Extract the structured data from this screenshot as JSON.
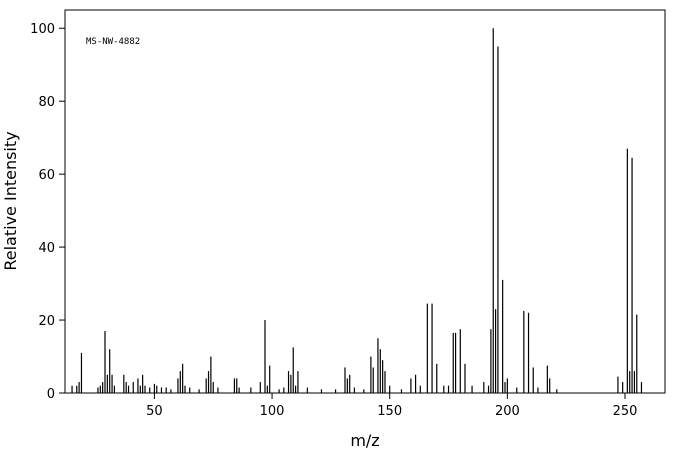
{
  "chart_data": {
    "type": "bar",
    "annotation": "MS-NW-4882",
    "xlabel": "m/z",
    "ylabel": "Relative Intensity",
    "xlim": [
      12,
      267
    ],
    "ylim": [
      0,
      105
    ],
    "xticks": [
      50,
      100,
      150,
      200,
      250
    ],
    "yticks": [
      0,
      20,
      40,
      60,
      80,
      100
    ],
    "color": "#000000",
    "x": [
      15,
      17,
      18,
      19,
      26,
      27,
      28,
      29,
      30,
      31,
      32,
      33,
      37,
      38,
      39,
      41,
      43,
      44,
      45,
      46,
      48,
      50,
      51,
      53,
      55,
      57,
      60,
      61,
      62,
      63,
      65,
      69,
      72,
      73,
      74,
      75,
      77,
      84,
      85,
      86,
      91,
      95,
      97,
      98,
      99,
      103,
      105,
      107,
      108,
      109,
      110,
      111,
      115,
      121,
      127,
      131,
      132,
      133,
      135,
      139,
      142,
      143,
      145,
      146,
      147,
      148,
      150,
      155,
      159,
      161,
      163,
      166,
      168,
      170,
      173,
      175,
      177,
      178,
      180,
      182,
      185,
      190,
      192,
      193,
      194,
      195,
      196,
      198,
      199,
      200,
      204,
      207,
      209,
      211,
      213,
      217,
      218,
      221,
      247,
      249,
      251,
      252,
      253,
      254,
      255,
      257
    ],
    "values": [
      2,
      2,
      3,
      11,
      1.5,
      2,
      3,
      17,
      5,
      12,
      5,
      2,
      5,
      3,
      2,
      3,
      4,
      2,
      5,
      2,
      1.5,
      2.5,
      2,
      1.5,
      1.5,
      1,
      4,
      6,
      8,
      2,
      1.5,
      1,
      4,
      6,
      10,
      3,
      1.5,
      4,
      4,
      1.5,
      1.5,
      3,
      20,
      2,
      7.5,
      1,
      1.5,
      6,
      5,
      12.5,
      2,
      6,
      1.5,
      1,
      1,
      7,
      4,
      5,
      1.5,
      1,
      10,
      7,
      15,
      12,
      9,
      6,
      2,
      1,
      4,
      5,
      2,
      24.5,
      24.5,
      8,
      2,
      2,
      16.5,
      16.5,
      17.5,
      8,
      2,
      3,
      2,
      17.5,
      100,
      23,
      95,
      31,
      3,
      4,
      1.5,
      22.5,
      22,
      7,
      1.5,
      7.5,
      4,
      1,
      4.5,
      3,
      67,
      6,
      64.5,
      6,
      21.5,
      3
    ]
  }
}
